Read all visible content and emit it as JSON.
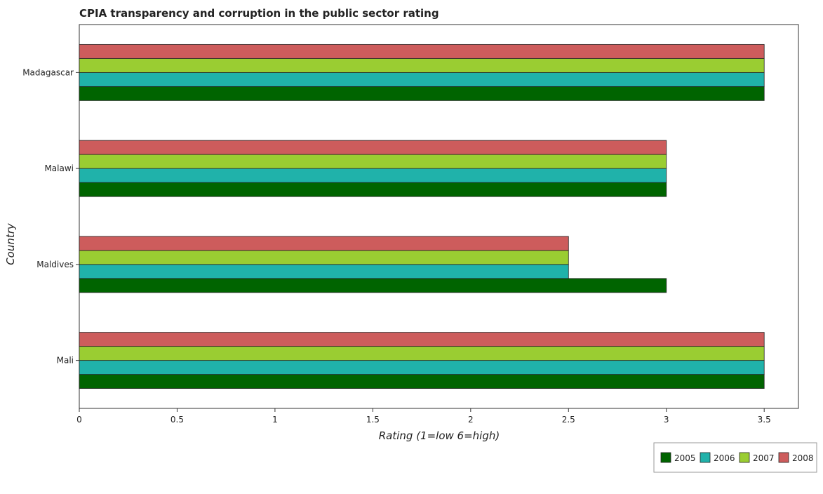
{
  "chart_data": {
    "type": "bar",
    "orientation": "horizontal",
    "title": "CPIA transparency and corruption in the public sector rating",
    "xlabel": "Rating (1=low 6=high)",
    "ylabel": "Country",
    "xlim": [
      0,
      3.675
    ],
    "xticks": [
      0,
      0.5,
      1,
      1.5,
      2,
      2.5,
      3,
      3.5
    ],
    "xtick_labels": [
      "0",
      "0.5",
      "1",
      "1.5",
      "2",
      "2.5",
      "3",
      "3.5"
    ],
    "categories": [
      "Madagascar",
      "Malawi",
      "Maldives",
      "Mali"
    ],
    "series": [
      {
        "name": "2005",
        "color": "#006400",
        "values": [
          3.5,
          3.0,
          3.0,
          3.5
        ]
      },
      {
        "name": "2006",
        "color": "#20b2aa",
        "values": [
          3.5,
          3.0,
          2.5,
          3.5
        ]
      },
      {
        "name": "2007",
        "color": "#9acd32",
        "values": [
          3.5,
          3.0,
          2.5,
          3.5
        ]
      },
      {
        "name": "2008",
        "color": "#cd5c5c",
        "values": [
          3.5,
          3.0,
          2.5,
          3.5
        ]
      }
    ],
    "grid": false,
    "legend_position": "bottom-right"
  }
}
